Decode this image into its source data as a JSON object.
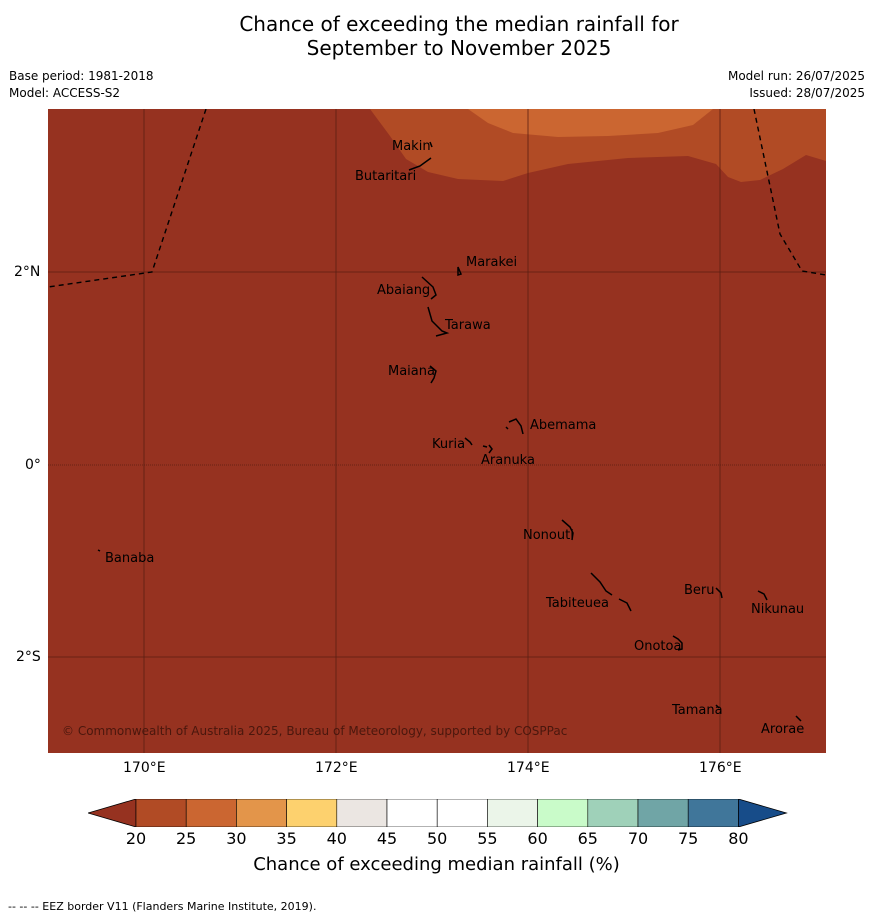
{
  "title": {
    "line1": "Chance of exceeding the median rainfall for",
    "line2": "September to November 2025"
  },
  "meta": {
    "base_period": "Base period: 1981-2018",
    "model": "Model: ACCESS-S2",
    "model_run": "Model run: 26/07/2025",
    "issued": "Issued: 28/07/2025"
  },
  "map": {
    "lat_labels": [
      "2°N",
      "0°",
      "2°S"
    ],
    "lon_labels": [
      "170°E",
      "172°E",
      "174°E",
      "176°E"
    ],
    "copyright": "© Commonwealth of Australia 2025, Bureau of Meteorology, supported by COSPPac",
    "islands": {
      "makin": "Makin",
      "butaritari": "Butaritari",
      "marakei": "Marakei",
      "abaiang": "Abaiang",
      "tarawa": "Tarawa",
      "maiana": "Maiana",
      "abemama": "Abemama",
      "kuria": "Kuria",
      "aranuka": "Aranuka",
      "nonouti": "Nonouti",
      "banaba": "Banaba",
      "beru": "Beru",
      "nikunau": "Nikunau",
      "tabiteuea": "Tabiteuea",
      "onotoa": "Onotoa",
      "tamana": "Tamana",
      "arorae": "Arorae"
    },
    "colors": {
      "below_20": "#963220",
      "c20_25": "#b14b25",
      "c25_30": "#cb6631"
    }
  },
  "colorbar": {
    "ticks": [
      "20",
      "25",
      "30",
      "35",
      "40",
      "45",
      "50",
      "55",
      "60",
      "65",
      "70",
      "75",
      "80"
    ],
    "colors": [
      "#963220",
      "#b14b25",
      "#cb6631",
      "#e3954a",
      "#fdd16e",
      "#ebe6e2",
      "#ffffff",
      "#ffffff",
      "#ebf5e9",
      "#c9fbc9",
      "#9fd1b9",
      "#70a5a6",
      "#40769a",
      "#174c89"
    ],
    "label": "Chance of exceeding median rainfall (%)"
  },
  "footnote": "--  --  -- EEZ border V11 (Flanders Marine Institute, 2019)."
}
